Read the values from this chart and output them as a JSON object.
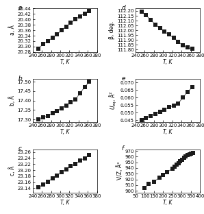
{
  "panel_a": {
    "label": "a",
    "ylabel": "a, Å",
    "xlabel": "T, K",
    "T": [
      253,
      263,
      273,
      283,
      293,
      303,
      313,
      323,
      333,
      343,
      353,
      363
    ],
    "Y": [
      20.293,
      20.31,
      20.32,
      20.332,
      20.345,
      20.36,
      20.374,
      20.387,
      20.4,
      20.412,
      20.422,
      20.43
    ],
    "xlim": [
      240,
      380
    ],
    "ylim": [
      20.28,
      20.44
    ],
    "yticks": [
      20.28,
      20.3,
      20.32,
      20.34,
      20.36,
      20.38,
      20.4,
      20.42,
      20.44
    ],
    "xticks": [
      240,
      260,
      280,
      300,
      320,
      340,
      360,
      380
    ]
  },
  "panel_d": {
    "label": "d",
    "ylabel": "β, deg.",
    "xlabel": "T, K",
    "T": [
      253,
      263,
      273,
      283,
      293,
      303,
      313,
      323,
      333,
      343,
      353,
      363
    ],
    "Y": [
      112.195,
      112.155,
      112.107,
      112.06,
      112.02,
      111.985,
      111.955,
      111.92,
      111.88,
      111.845,
      111.82,
      111.808
    ],
    "xlim": [
      240,
      380
    ],
    "ylim": [
      111.775,
      112.225
    ],
    "yticks": [
      111.8,
      111.85,
      111.9,
      111.95,
      112.0,
      112.05,
      112.1,
      112.15,
      112.2
    ],
    "xticks": [
      240,
      260,
      280,
      300,
      320,
      340,
      360,
      380
    ]
  },
  "panel_b": {
    "label": "b",
    "ylabel": "b, Å",
    "xlabel": "T, K",
    "T": [
      253,
      263,
      273,
      283,
      293,
      303,
      313,
      323,
      333,
      343,
      353,
      363
    ],
    "Y": [
      17.3,
      17.31,
      17.32,
      17.332,
      17.345,
      17.36,
      17.375,
      17.39,
      17.405,
      17.44,
      17.47,
      17.5
    ],
    "xlim": [
      240,
      380
    ],
    "ylim": [
      17.285,
      17.515
    ],
    "yticks": [
      17.3,
      17.35,
      17.4,
      17.45,
      17.5
    ],
    "xticks": [
      240,
      260,
      280,
      300,
      320,
      340,
      360,
      380
    ]
  },
  "panel_e": {
    "label": "e",
    "ylabel": "U_eq, Å²",
    "xlabel": "T, K",
    "T": [
      253,
      263,
      273,
      283,
      293,
      303,
      313,
      323,
      333,
      343,
      353,
      363
    ],
    "Y": [
      0.045,
      0.0465,
      0.0478,
      0.0492,
      0.0506,
      0.0521,
      0.0535,
      0.0548,
      0.0562,
      0.06,
      0.0638,
      0.0668
    ],
    "xlim": [
      240,
      380
    ],
    "ylim": [
      0.0435,
      0.0725
    ],
    "yticks": [
      0.045,
      0.05,
      0.055,
      0.06,
      0.065,
      0.07
    ],
    "xticks": [
      240,
      260,
      280,
      300,
      320,
      340,
      360,
      380
    ]
  },
  "panel_c": {
    "label": "c",
    "ylabel": "c, Å",
    "xlabel": "T, K",
    "T": [
      253,
      263,
      273,
      283,
      293,
      303,
      313,
      323,
      333,
      343,
      353,
      363
    ],
    "Y": [
      23.142,
      23.152,
      23.162,
      23.172,
      23.182,
      23.193,
      23.203,
      23.213,
      23.22,
      23.232,
      23.24,
      23.25
    ],
    "xlim": [
      240,
      380
    ],
    "ylim": [
      23.125,
      23.27
    ],
    "yticks": [
      23.14,
      23.16,
      23.18,
      23.2,
      23.22,
      23.24,
      23.26
    ],
    "xticks": [
      240,
      260,
      280,
      300,
      320,
      340,
      360,
      380
    ]
  },
  "panel_f": {
    "label": "f",
    "ylabel": "V/Z, Å³",
    "xlabel": "T, K",
    "T": [
      100,
      120,
      150,
      180,
      200,
      220,
      250,
      263,
      273,
      283,
      293,
      303,
      313,
      323,
      333,
      343,
      353,
      363
    ],
    "Y": [
      905.5,
      912.0,
      916.5,
      923.0,
      928.0,
      932.5,
      939.0,
      942.5,
      945.5,
      948.5,
      951.5,
      954.5,
      957.5,
      960.0,
      962.5,
      964.5,
      965.5,
      966.5
    ],
    "xlim": [
      50,
      400
    ],
    "ylim": [
      897,
      973
    ],
    "yticks": [
      900,
      910,
      920,
      930,
      940,
      950,
      960,
      970
    ],
    "xticks": [
      50,
      100,
      150,
      200,
      250,
      300,
      350,
      400
    ]
  },
  "marker_color": "#1a1a1a",
  "line_color": "#666666",
  "marker_size": 4.5,
  "line_width": 0.7,
  "tick_fontsize": 5.0,
  "label_fontsize": 5.5,
  "panel_label_fontsize": 6.5
}
